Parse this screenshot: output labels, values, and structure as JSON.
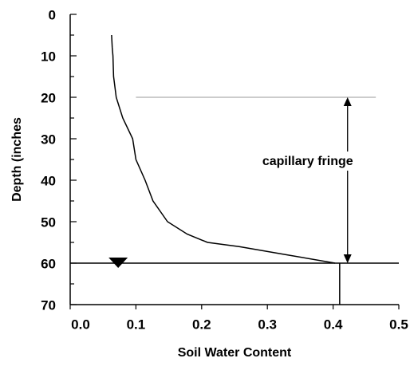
{
  "chart_data": {
    "type": "line",
    "x_label": "Soil Water Content",
    "y_label": "Depth (inches",
    "series": [
      {
        "color": "#000000",
        "x": [
          0.063,
          0.064,
          0.065,
          0.066,
          0.07,
          0.08,
          0.095,
          0.1,
          0.114,
          0.126,
          0.148,
          0.178,
          0.209,
          0.257,
          0.33,
          0.403
        ],
        "values": [
          5,
          8,
          10,
          15,
          20,
          25,
          30,
          35,
          40,
          45,
          50,
          53,
          55,
          56,
          58,
          60
        ]
      }
    ],
    "xlim": [
      0,
      0.5
    ],
    "xticks": [
      {
        "value": 0,
        "label": "0.0"
      },
      0.1,
      0.2,
      0.3,
      0.4,
      0.5
    ],
    "ylim": [
      0,
      70
    ],
    "yticks": [
      0,
      10,
      20,
      30,
      40,
      50,
      60,
      70
    ],
    "y_inverted": true,
    "water_table": {
      "depth": 60,
      "marker_x": 0.073,
      "drop_x": 0.41
    },
    "fringe": {
      "top_depth": 20,
      "line_x": [
        0.1,
        0.465
      ],
      "arrow_x": 0.422,
      "label": "capillary fringe"
    }
  }
}
